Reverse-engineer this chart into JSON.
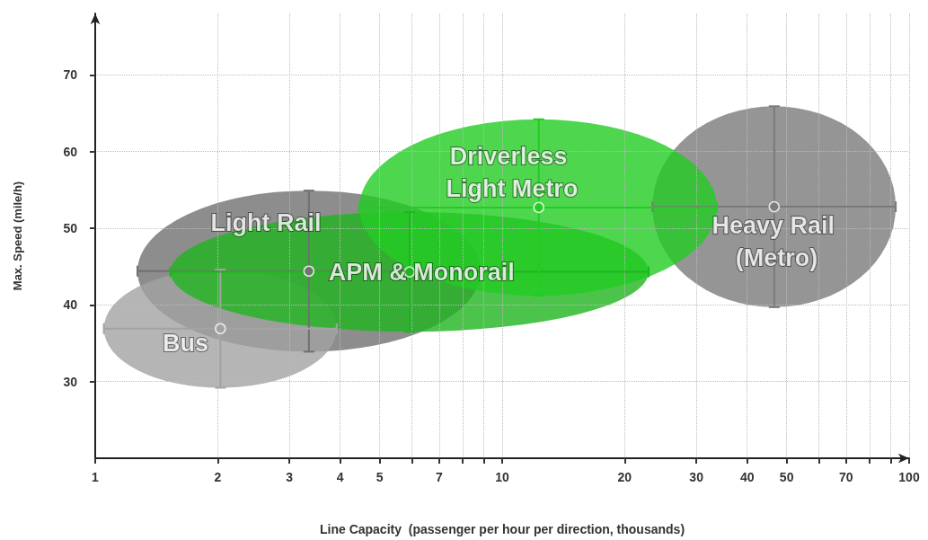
{
  "chart_data": {
    "type": "scatter",
    "xlabel": "Line Capacity  (passenger per hour per direction, thousands)",
    "ylabel": "Max. Speed (mile/h)",
    "log": "x",
    "xlim": [
      1,
      100
    ],
    "ylim": [
      20,
      78
    ],
    "xticks": [
      1,
      2,
      3,
      4,
      5,
      {
        "value": 6,
        "label": null
      },
      7,
      {
        "value": 8,
        "label": null
      },
      {
        "value": 9,
        "label": null
      },
      10,
      20,
      30,
      40,
      50,
      {
        "value": 60,
        "label": null
      },
      70,
      {
        "value": 80,
        "label": null
      },
      {
        "value": 90,
        "label": null
      },
      100
    ],
    "yticks": [
      30,
      40,
      50,
      60,
      70
    ],
    "grid": true,
    "legend": false,
    "series": [
      {
        "name": "Light Rail",
        "color": "#707070",
        "x": [
          3.35
        ],
        "values": [
          44.4
        ],
        "xerrors": [
          [
            1.27,
            8.85
          ]
        ],
        "errors": [
          [
            33.9,
            54.9
          ]
        ]
      },
      {
        "name": "Bus",
        "color": "#a3a3a3",
        "x": [
          2.03
        ],
        "values": [
          36.9
        ],
        "xerrors": [
          [
            1.05,
            3.92
          ]
        ],
        "errors": [
          [
            29.2,
            44.6
          ]
        ]
      },
      {
        "name": "APM & Monorail",
        "color": "#1fb51f",
        "x": [
          5.92
        ],
        "values": [
          44.3
        ],
        "xerrors": [
          [
            1.53,
            22.9
          ]
        ],
        "errors": [
          [
            36.5,
            52.1
          ]
        ]
      },
      {
        "name": "Heavy Rail (Metro)",
        "color": "#7a7a7a",
        "x": [
          46.6
        ],
        "values": [
          52.8
        ],
        "xerrors": [
          [
            23.4,
            92.7
          ]
        ],
        "errors": [
          [
            39.7,
            65.9
          ]
        ]
      },
      {
        "name": "Driverless Light Metro",
        "color": "#22cc22",
        "x": [
          12.3
        ],
        "values": [
          52.7
        ],
        "xerrors": [
          [
            4.46,
            33.7
          ]
        ],
        "errors": [
          [
            41.2,
            64.2
          ]
        ]
      }
    ]
  }
}
